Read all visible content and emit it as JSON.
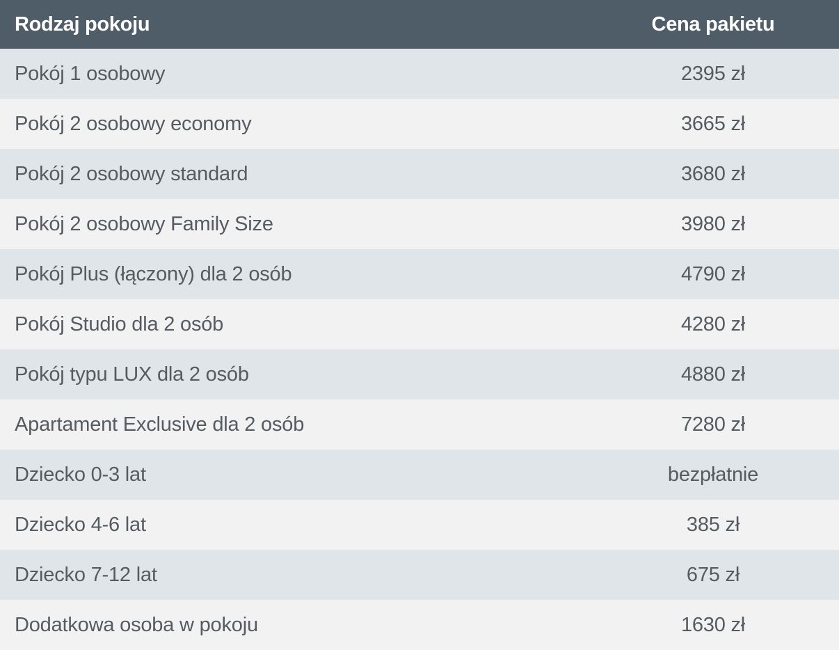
{
  "table": {
    "headers": {
      "room_type": "Rodzaj pokoju",
      "package_price": "Cena pakietu"
    },
    "rows": [
      {
        "room": "Pokój 1 osobowy",
        "price": "2395 zł"
      },
      {
        "room": "Pokój 2 osobowy economy",
        "price": "3665 zł"
      },
      {
        "room": "Pokój 2 osobowy standard",
        "price": "3680 zł"
      },
      {
        "room": "Pokój 2 osobowy Family Size",
        "price": "3980 zł"
      },
      {
        "room": "Pokój Plus (łączony) dla 2 osób",
        "price": "4790 zł"
      },
      {
        "room": "Pokój Studio dla 2 osób",
        "price": "4280 zł"
      },
      {
        "room": "Pokój typu LUX dla 2 osób",
        "price": "4880 zł"
      },
      {
        "room": "Apartament Exclusive dla 2 osób",
        "price": "7280 zł"
      },
      {
        "room": "Dziecko 0-3 lat",
        "price": "bezpłatnie"
      },
      {
        "room": "Dziecko 4-6 lat",
        "price": "385 zł"
      },
      {
        "room": "Dziecko 7-12 lat",
        "price": "675 zł"
      },
      {
        "room": "Dodatkowa osoba w pokoju",
        "price": "1630 zł"
      }
    ]
  },
  "colors": {
    "header_background": "#4f5d69",
    "header_text": "#ffffff",
    "row_odd_background": "#dfe5e8",
    "row_even_background": "#f2f2f2",
    "body_text": "#555b61"
  }
}
